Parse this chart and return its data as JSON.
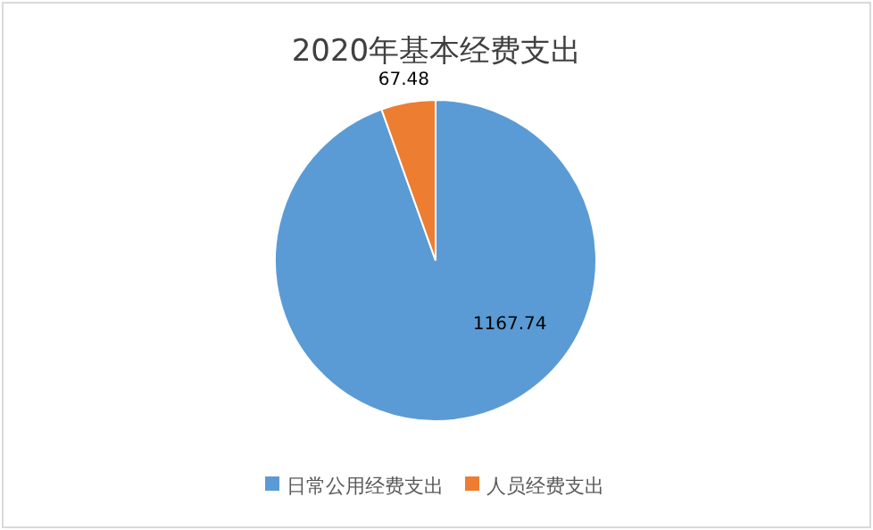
{
  "chart_data": {
    "type": "pie",
    "title": "2020年基本经费支出",
    "categories": [
      "日常公用经费支出",
      "人员经费支出"
    ],
    "values": [
      1167.74,
      67.48
    ],
    "colors": [
      "#5b9bd5",
      "#ed7d31"
    ],
    "data_labels": true,
    "legend": "bottom"
  }
}
